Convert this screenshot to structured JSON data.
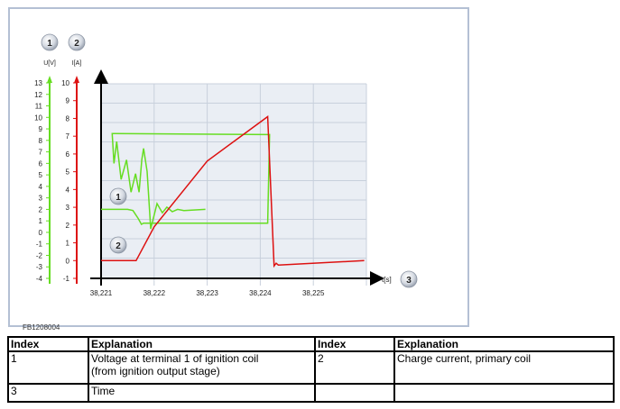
{
  "figure_id": "FB1208004",
  "chart_data": {
    "type": "line",
    "xlabel": "t[s]",
    "xlim": [
      38.221,
      38.226
    ],
    "x_ticks": [
      "38,221",
      "38,222",
      "38,223",
      "38,224",
      "38,225"
    ],
    "x_tick_values": [
      38.221,
      38.222,
      38.223,
      38.224,
      38.225
    ],
    "axes": [
      {
        "label": "U[V]",
        "badge": "1",
        "color": "#66dd22",
        "ylim": [
          -4,
          13
        ],
        "ticks": [
          "13",
          "12",
          "11",
          "10",
          "9",
          "8",
          "7",
          "6",
          "5",
          "4",
          "3",
          "2",
          "1",
          "0",
          "-1",
          "-2",
          "-3",
          "-4"
        ]
      },
      {
        "label": "I[A]",
        "badge": "2",
        "color": "#dd1111",
        "ylim": [
          -1,
          10
        ],
        "ticks": [
          "10",
          "9",
          "8",
          "7",
          "6",
          "5",
          "4",
          "3",
          "2",
          "1",
          "0",
          "-1"
        ]
      }
    ],
    "x_badge": "3",
    "series": [
      {
        "name": "1",
        "axis": 0,
        "color": "#66dd22",
        "points": [
          [
            38.221,
            2.0
          ],
          [
            38.2215,
            2.0
          ],
          [
            38.2216,
            1.9
          ],
          [
            38.2217,
            1.2
          ],
          [
            38.22176,
            0.7
          ],
          [
            38.2218,
            0.8
          ],
          [
            38.22414,
            0.8
          ],
          [
            38.221176,
            8.5
          ],
          [
            38.221209,
            8.6
          ],
          [
            38.221243,
            6.0
          ],
          [
            38.221294,
            7.9
          ],
          [
            38.221378,
            4.6
          ],
          [
            38.22148,
            6.3
          ],
          [
            38.221564,
            3.5
          ],
          [
            38.221649,
            5.1
          ],
          [
            38.221716,
            3.5
          ],
          [
            38.221767,
            6.3
          ],
          [
            38.221801,
            7.3
          ],
          [
            38.221868,
            5.3
          ],
          [
            38.221936,
            0.3
          ],
          [
            38.222054,
            2.5
          ],
          [
            38.222155,
            1.7
          ],
          [
            38.22224,
            2.2
          ],
          [
            38.222341,
            1.8
          ],
          [
            38.222443,
            2.0
          ],
          [
            38.222561,
            1.9
          ],
          [
            38.222966,
            2.0
          ]
        ]
      },
      {
        "name": "2",
        "axis": 1,
        "color": "#dd1111",
        "points": [
          [
            38.221,
            0.0
          ],
          [
            38.22166,
            0.0
          ],
          [
            38.222,
            1.9
          ],
          [
            38.223,
            5.6
          ],
          [
            38.22414,
            8.1
          ],
          [
            38.22426,
            -0.3
          ],
          [
            38.2243,
            -0.15
          ],
          [
            38.22434,
            -0.25
          ],
          [
            38.22596,
            0.0
          ]
        ]
      }
    ]
  },
  "table": {
    "headers": [
      "Index",
      "Explanation",
      "Index",
      "Explanation"
    ],
    "rows": [
      [
        "1",
        "Voltage at terminal 1 of ignition coil\n(from ignition output stage)",
        "2",
        "Charge current, primary coil"
      ],
      [
        "3",
        "Time",
        "",
        ""
      ]
    ]
  }
}
